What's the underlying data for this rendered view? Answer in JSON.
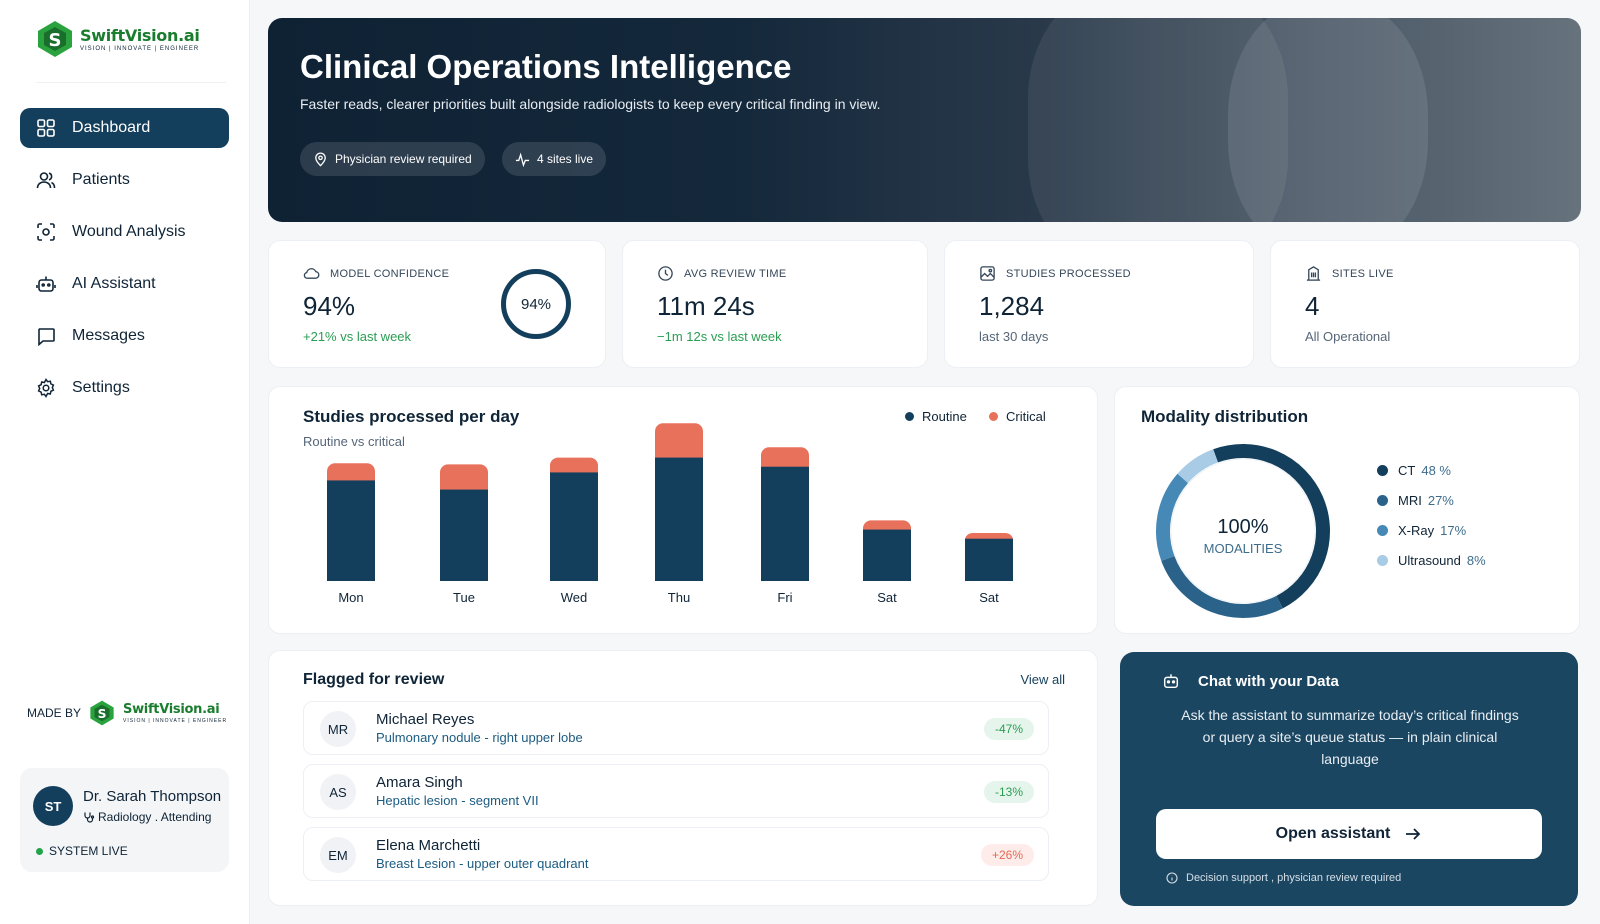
{
  "brand": {
    "name": "SwiftVision.ai",
    "tagline": "VISION | INNOVATE | ENGINEER",
    "made_by_label": "MADE BY"
  },
  "nav": {
    "items": [
      {
        "label": "Dashboard",
        "icon": "grid-icon",
        "active": true
      },
      {
        "label": "Patients",
        "icon": "users-icon"
      },
      {
        "label": "Wound Analysis",
        "icon": "scan-icon"
      },
      {
        "label": "AI Assistant",
        "icon": "robot-icon"
      },
      {
        "label": "Messages",
        "icon": "message-icon"
      },
      {
        "label": "Settings",
        "icon": "gear-icon"
      }
    ]
  },
  "user": {
    "initials": "ST",
    "name": "Dr. Sarah Thompson",
    "role": "Radiology . Attending",
    "status": "SYSTEM LIVE"
  },
  "hero": {
    "title": "Clinical Operations Intelligence",
    "subtitle": "Faster reads, clearer priorities built alongside radiologists to keep every critical finding in view.",
    "chips": [
      "Physician review required",
      "4 sites live"
    ]
  },
  "stats": [
    {
      "label": "MODEL CONFIDENCE",
      "value": "94%",
      "note": "+21% vs last week",
      "ring": "94%",
      "ring_value": 94
    },
    {
      "label": "AVG REVIEW TIME",
      "value": "11m 24s",
      "note": "−1m 12s vs last week"
    },
    {
      "label": "STUDIES PROCESSED",
      "value": "1,284",
      "note": "last 30 days"
    },
    {
      "label": "SITES LIVE",
      "value": "4",
      "note": "All Operational"
    }
  ],
  "chart_data": [
    {
      "type": "bar",
      "stacked": true,
      "title": "Studies processed per day",
      "subtitle": "Routine vs critical",
      "categories": [
        "Mon",
        "Tue",
        "Wed",
        "Thu",
        "Fri",
        "Sat",
        "Sat"
      ],
      "series": [
        {
          "name": "Routine",
          "color": "#143f5c",
          "values": [
            88,
            80,
            95,
            108,
            100,
            45,
            37
          ]
        },
        {
          "name": "Critical",
          "color": "#e8715b",
          "values": [
            15,
            22,
            13,
            30,
            17,
            8,
            5
          ]
        }
      ],
      "ylim": [
        0,
        140
      ],
      "legend_position": "top-right"
    },
    {
      "type": "pie",
      "donut": true,
      "title": "Modality distribution",
      "center_value": "100%",
      "center_label": "MODALITIES",
      "slices": [
        {
          "name": "CT",
          "value": 48,
          "label": "48 %",
          "color": "#143f5c"
        },
        {
          "name": "MRI",
          "value": 27,
          "label": "27%",
          "color": "#2a628a"
        },
        {
          "name": "X-Ray",
          "value": 17,
          "label": "17%",
          "color": "#4688b6"
        },
        {
          "name": "Ultrasound",
          "value": 8,
          "label": "8%",
          "color": "#a8cbe6"
        }
      ],
      "legend_position": "right"
    }
  ],
  "flagged": {
    "title": "Flagged for review",
    "view_all": "View all",
    "rows": [
      {
        "initials": "MR",
        "name": "Michael Reyes",
        "desc": "Pulmonary nodule - right upper lobe",
        "badge": "-47%",
        "trend": "neg"
      },
      {
        "initials": "AS",
        "name": "Amara Singh",
        "desc": "Hepatic lesion - segment VII",
        "badge": "-13%",
        "trend": "neg"
      },
      {
        "initials": "EM",
        "name": "Elena Marchetti",
        "desc": "Breast Lesion - upper outer quadrant",
        "badge": "+26%",
        "trend": "pos"
      }
    ]
  },
  "chat": {
    "title": "Chat with your Data",
    "body": "Ask the assistant to summarize today’s critical findings or query a site’s queue status — in plain clinical language",
    "button": "Open assistant",
    "footer": "Decision support , physician review required"
  },
  "colors": {
    "primary": "#143f5c",
    "accent_critical": "#e8715b",
    "brand_green": "#1a7d2e",
    "positive": "#2a9d52"
  }
}
